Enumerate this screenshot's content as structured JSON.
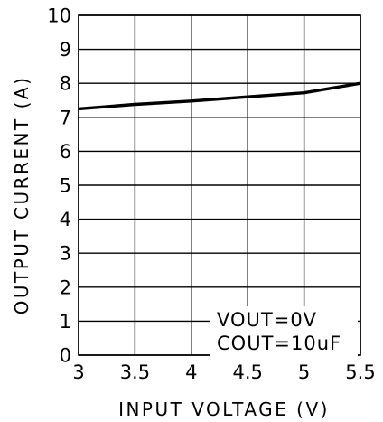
{
  "chart_data": {
    "type": "line",
    "title": "",
    "xlabel": "INPUT VOLTAGE (V)",
    "ylabel": "OUTPUT CURRENT (A)",
    "xlim": [
      3,
      5.5
    ],
    "ylim": [
      0,
      10
    ],
    "x_ticks": [
      3,
      3.5,
      4,
      4.5,
      5,
      5.5
    ],
    "x_tick_labels": [
      "3",
      "3.5",
      "4",
      "4.5",
      "5",
      "5.5"
    ],
    "y_ticks": [
      0,
      1,
      2,
      3,
      4,
      5,
      6,
      7,
      8,
      9,
      10
    ],
    "y_tick_labels": [
      "0",
      "1",
      "2",
      "3",
      "4",
      "5",
      "6",
      "7",
      "8",
      "9",
      "10"
    ],
    "grid": true,
    "series": [
      {
        "x": [
          3,
          3.5,
          4,
          4.5,
          5,
          5.5
        ],
        "y": [
          7.25,
          7.38,
          7.48,
          7.6,
          7.72,
          8.0
        ]
      }
    ],
    "annotations": [
      "VOUT=0V",
      "COUT=10uF"
    ],
    "colors": {
      "line": "#000000",
      "grid": "#000000",
      "background": "#ffffff"
    }
  }
}
